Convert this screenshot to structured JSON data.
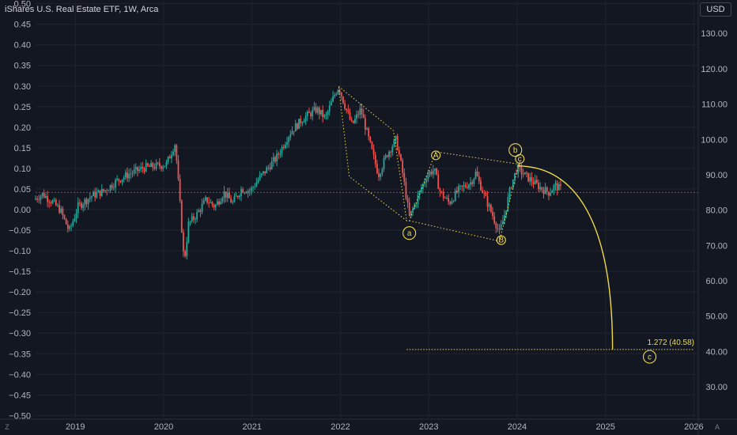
{
  "header": {
    "title": "iShares U.S. Real Estate ETF, 1W, Arca",
    "currency": "USD"
  },
  "footer": {
    "left_button": "Z",
    "right_button": "A"
  },
  "colors": {
    "background": "#131722",
    "up": "#26a69a",
    "down": "#ef5350",
    "annotation": "#f0d94b",
    "grid": "#1f2430",
    "axis_text": "#b2b5be",
    "zero_line": "#ef5350"
  },
  "chart_data": {
    "type": "candlestick",
    "title": "iShares U.S. Real Estate ETF, 1W, Arca",
    "xlim": [
      2018.55,
      2026.05
    ],
    "x_ticks": [
      "2019",
      "2020",
      "2021",
      "2022",
      "2023",
      "2024",
      "2025",
      "2026"
    ],
    "left_axis": {
      "ylim": [
        -0.505,
        0.505
      ],
      "ticks": [
        "0.50",
        "0.45",
        "0.40",
        "0.35",
        "0.30",
        "0.25",
        "0.20",
        "0.15",
        "0.10",
        "0.05",
        "0.00",
        "−0.05",
        "−0.10",
        "−0.15",
        "−0.20",
        "−0.25",
        "−0.30",
        "−0.35",
        "−0.40",
        "−0.45",
        "−0.50"
      ]
    },
    "right_axis": {
      "ylim": [
        21.3,
        139.0
      ],
      "ticks": [
        "130.00",
        "120.00",
        "110.00",
        "100.00",
        "90.00",
        "80.00",
        "70.00",
        "60.00",
        "50.00",
        "40.00",
        "30.00"
      ]
    },
    "zero_line_price": 85.0,
    "price_path": [
      [
        2018.55,
        83.0
      ],
      [
        2018.65,
        84.5
      ],
      [
        2018.75,
        82.5
      ],
      [
        2018.85,
        80.0
      ],
      [
        2018.95,
        74.0
      ],
      [
        2019.05,
        81.0
      ],
      [
        2019.2,
        84.0
      ],
      [
        2019.35,
        85.5
      ],
      [
        2019.5,
        88.5
      ],
      [
        2019.65,
        90.5
      ],
      [
        2019.8,
        92.0
      ],
      [
        2019.95,
        92.5
      ],
      [
        2020.05,
        93.0
      ],
      [
        2020.15,
        99.0
      ],
      [
        2020.2,
        83.0
      ],
      [
        2020.25,
        65.0
      ],
      [
        2020.3,
        76.0
      ],
      [
        2020.4,
        79.0
      ],
      [
        2020.5,
        83.0
      ],
      [
        2020.6,
        81.0
      ],
      [
        2020.7,
        85.0
      ],
      [
        2020.8,
        82.0
      ],
      [
        2020.9,
        86.0
      ],
      [
        2021.0,
        85.5
      ],
      [
        2021.1,
        89.0
      ],
      [
        2021.2,
        92.0
      ],
      [
        2021.3,
        95.0
      ],
      [
        2021.45,
        102.0
      ],
      [
        2021.6,
        106.0
      ],
      [
        2021.75,
        108.5
      ],
      [
        2021.85,
        106.0
      ],
      [
        2021.95,
        112.5
      ],
      [
        2022.0,
        115.0
      ],
      [
        2022.05,
        111.0
      ],
      [
        2022.15,
        104.0
      ],
      [
        2022.25,
        108.5
      ],
      [
        2022.35,
        99.0
      ],
      [
        2022.45,
        90.0
      ],
      [
        2022.55,
        96.0
      ],
      [
        2022.65,
        100.0
      ],
      [
        2022.72,
        91.0
      ],
      [
        2022.8,
        78.0
      ],
      [
        2022.9,
        84.0
      ],
      [
        2023.0,
        90.0
      ],
      [
        2023.08,
        91.5
      ],
      [
        2023.15,
        85.0
      ],
      [
        2023.25,
        82.0
      ],
      [
        2023.35,
        85.5
      ],
      [
        2023.5,
        88.0
      ],
      [
        2023.55,
        90.5
      ],
      [
        2023.65,
        84.0
      ],
      [
        2023.75,
        78.0
      ],
      [
        2023.82,
        73.5
      ],
      [
        2023.88,
        79.0
      ],
      [
        2023.95,
        87.0
      ],
      [
        2024.02,
        92.0
      ],
      [
        2024.1,
        90.0
      ],
      [
        2024.2,
        88.0
      ],
      [
        2024.3,
        86.0
      ],
      [
        2024.38,
        85.0
      ],
      [
        2024.45,
        87.0
      ],
      [
        2024.5,
        86.0
      ]
    ],
    "wave_labels": [
      {
        "label": "a",
        "style": "circle",
        "x": 2022.78,
        "y": 73.5
      },
      {
        "label": "A",
        "style": "small-circle",
        "x": 2023.08,
        "y": 95.5
      },
      {
        "label": "B",
        "style": "small-circle",
        "x": 2023.82,
        "y": 71.5
      },
      {
        "label": "b",
        "style": "circle",
        "x": 2023.98,
        "y": 97.0
      },
      {
        "label": "c",
        "style": "small-circle",
        "x": 2024.03,
        "y": 94.5
      },
      {
        "label": "c",
        "style": "circle",
        "x": 2025.5,
        "y": 38.5
      }
    ],
    "fibonacci": {
      "label": "1.272 (40.58)",
      "ratio": 1.272,
      "price": 40.58,
      "x_start": 2022.75,
      "x_end": 2026.0
    },
    "projection": {
      "from": [
        2024.0,
        92.5
      ],
      "to": [
        2025.08,
        40.58
      ]
    },
    "channels": [
      {
        "name": "channel-a",
        "points": [
          [
            2021.98,
            115.0
          ],
          [
            2022.6,
            102.5
          ],
          [
            2022.75,
            77.0
          ],
          [
            2022.1,
            89.5
          ]
        ]
      },
      {
        "name": "channel-b",
        "points": [
          [
            2022.78,
            77.0
          ],
          [
            2023.8,
            71.2
          ],
          [
            2024.02,
            93.0
          ],
          [
            2023.08,
            96.5
          ]
        ]
      }
    ]
  }
}
